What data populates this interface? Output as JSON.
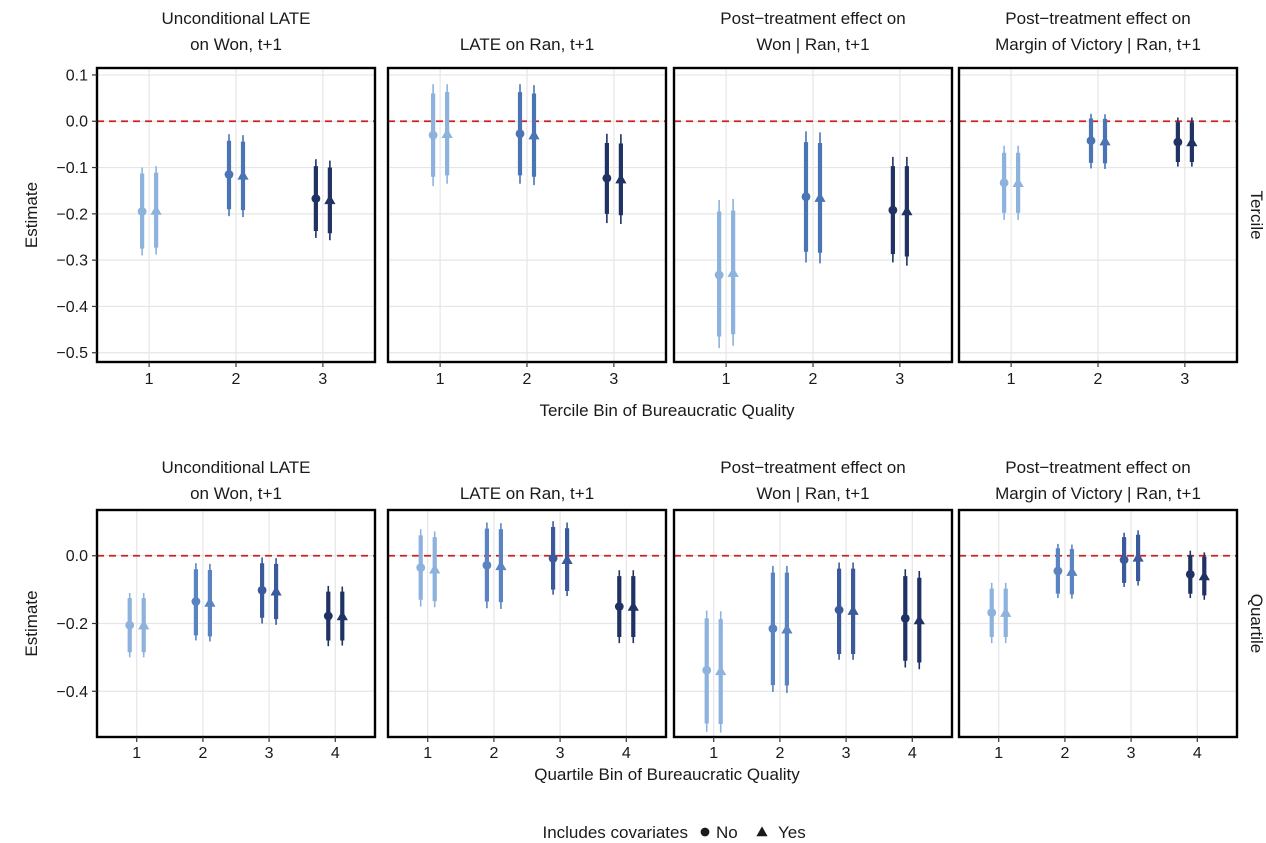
{
  "chart_data": {
    "type": "scatter",
    "description_free": true,
    "reference_line": 0,
    "legend": {
      "title": "Includes covariates",
      "position": "bottom",
      "entries": [
        {
          "label": "No",
          "shape": "circle"
        },
        {
          "label": "Yes",
          "shape": "triangle"
        }
      ]
    },
    "colors": {
      "bin1_tercile": "#8cb2dd",
      "bin2_tercile": "#4b74b4",
      "bin3_tercile": "#203263",
      "bin1_quartile": "#8cb2dd",
      "bin2_quartile": "#5a83c1",
      "bin3_quartile": "#3b5a9c",
      "bin4_quartile": "#203263",
      "refline": "#cc2222"
    },
    "panel_titles": [
      [
        "Unconditional LATE",
        "on Won, t+1"
      ],
      [
        "LATE on Ran, t+1"
      ],
      [
        "Post−treatment effect on",
        "Won | Ran, t+1"
      ],
      [
        "Post−treatment effect on",
        "Margin of Victory | Ran, t+1"
      ]
    ],
    "rows": [
      {
        "strip_label": "Tercile",
        "xlabel": "Tercile Bin of Bureaucratic Quality",
        "ylabel": "Estimate",
        "categories": [
          "1",
          "2",
          "3"
        ],
        "ylim": [
          -0.52,
          0.115
        ],
        "yticks": [
          0.1,
          0.0,
          -0.1,
          -0.2,
          -0.3,
          -0.4,
          -0.5
        ],
        "ytick_labels": [
          "0.1",
          "0.0",
          "−0.1",
          "−0.2",
          "−0.3",
          "−0.4",
          "−0.5"
        ],
        "panels": [
          {
            "bins": [
              {
                "no": {
                  "est": -0.195,
                  "ci90": [
                    -0.275,
                    -0.113
                  ],
                  "ci95": [
                    -0.29,
                    -0.1
                  ]
                },
                "yes": {
                  "est": -0.193,
                  "ci90": [
                    -0.273,
                    -0.111
                  ],
                  "ci95": [
                    -0.288,
                    -0.097
                  ]
                }
              },
              {
                "no": {
                  "est": -0.115,
                  "ci90": [
                    -0.19,
                    -0.042
                  ],
                  "ci95": [
                    -0.205,
                    -0.028
                  ]
                },
                "yes": {
                  "est": -0.117,
                  "ci90": [
                    -0.192,
                    -0.044
                  ],
                  "ci95": [
                    -0.207,
                    -0.03
                  ]
                }
              },
              {
                "no": {
                  "est": -0.167,
                  "ci90": [
                    -0.237,
                    -0.097
                  ],
                  "ci95": [
                    -0.252,
                    -0.082
                  ]
                },
                "yes": {
                  "est": -0.17,
                  "ci90": [
                    -0.242,
                    -0.1
                  ],
                  "ci95": [
                    -0.257,
                    -0.085
                  ]
                }
              }
            ]
          },
          {
            "bins": [
              {
                "no": {
                  "est": -0.03,
                  "ci90": [
                    -0.12,
                    0.06
                  ],
                  "ci95": [
                    -0.14,
                    0.08
                  ]
                },
                "yes": {
                  "est": -0.027,
                  "ci90": [
                    -0.117,
                    0.063
                  ],
                  "ci95": [
                    -0.135,
                    0.08
                  ]
                }
              },
              {
                "no": {
                  "est": -0.027,
                  "ci90": [
                    -0.117,
                    0.063
                  ],
                  "ci95": [
                    -0.135,
                    0.08
                  ]
                },
                "yes": {
                  "est": -0.03,
                  "ci90": [
                    -0.12,
                    0.06
                  ],
                  "ci95": [
                    -0.138,
                    0.078
                  ]
                }
              },
              {
                "no": {
                  "est": -0.123,
                  "ci90": [
                    -0.2,
                    -0.047
                  ],
                  "ci95": [
                    -0.22,
                    -0.027
                  ]
                },
                "yes": {
                  "est": -0.125,
                  "ci90": [
                    -0.203,
                    -0.048
                  ],
                  "ci95": [
                    -0.222,
                    -0.028
                  ]
                }
              }
            ]
          },
          {
            "bins": [
              {
                "no": {
                  "est": -0.332,
                  "ci90": [
                    -0.465,
                    -0.195
                  ],
                  "ci95": [
                    -0.49,
                    -0.17
                  ]
                },
                "yes": {
                  "est": -0.327,
                  "ci90": [
                    -0.46,
                    -0.193
                  ],
                  "ci95": [
                    -0.485,
                    -0.168
                  ]
                }
              },
              {
                "no": {
                  "est": -0.163,
                  "ci90": [
                    -0.282,
                    -0.045
                  ],
                  "ci95": [
                    -0.305,
                    -0.022
                  ]
                },
                "yes": {
                  "est": -0.165,
                  "ci90": [
                    -0.284,
                    -0.047
                  ],
                  "ci95": [
                    -0.307,
                    -0.024
                  ]
                }
              },
              {
                "no": {
                  "est": -0.192,
                  "ci90": [
                    -0.287,
                    -0.097
                  ],
                  "ci95": [
                    -0.305,
                    -0.077
                  ]
                },
                "yes": {
                  "est": -0.194,
                  "ci90": [
                    -0.292,
                    -0.097
                  ],
                  "ci95": [
                    -0.312,
                    -0.077
                  ]
                }
              }
            ]
          },
          {
            "bins": [
              {
                "no": {
                  "est": -0.133,
                  "ci90": [
                    -0.198,
                    -0.068
                  ],
                  "ci95": [
                    -0.213,
                    -0.053
                  ]
                },
                "yes": {
                  "est": -0.133,
                  "ci90": [
                    -0.198,
                    -0.068
                  ],
                  "ci95": [
                    -0.213,
                    -0.053
                  ]
                }
              },
              {
                "no": {
                  "est": -0.042,
                  "ci90": [
                    -0.09,
                    0.006
                  ],
                  "ci95": [
                    -0.102,
                    0.016
                  ]
                },
                "yes": {
                  "est": -0.043,
                  "ci90": [
                    -0.091,
                    0.005
                  ],
                  "ci95": [
                    -0.103,
                    0.015
                  ]
                }
              },
              {
                "no": {
                  "est": -0.045,
                  "ci90": [
                    -0.088,
                    -0.002
                  ],
                  "ci95": [
                    -0.098,
                    0.008
                  ]
                },
                "yes": {
                  "est": -0.045,
                  "ci90": [
                    -0.088,
                    -0.002
                  ],
                  "ci95": [
                    -0.098,
                    0.008
                  ]
                }
              }
            ]
          }
        ]
      },
      {
        "strip_label": "Quartile",
        "xlabel": "Quartile Bin of Bureaucratic Quality",
        "ylabel": "Estimate",
        "categories": [
          "1",
          "2",
          "3",
          "4"
        ],
        "ylim": [
          -0.535,
          0.135
        ],
        "yticks": [
          0.0,
          -0.2,
          -0.4
        ],
        "ytick_labels": [
          "0.0",
          "−0.2",
          "−0.4"
        ],
        "panels": [
          {
            "bins": [
              {
                "no": {
                  "est": -0.205,
                  "ci90": [
                    -0.285,
                    -0.125
                  ],
                  "ci95": [
                    -0.3,
                    -0.11
                  ]
                },
                "yes": {
                  "est": -0.205,
                  "ci90": [
                    -0.285,
                    -0.125
                  ],
                  "ci95": [
                    -0.3,
                    -0.11
                  ]
                }
              },
              {
                "no": {
                  "est": -0.135,
                  "ci90": [
                    -0.235,
                    -0.04
                  ],
                  "ci95": [
                    -0.25,
                    -0.022
                  ]
                },
                "yes": {
                  "est": -0.138,
                  "ci90": [
                    -0.238,
                    -0.042
                  ],
                  "ci95": [
                    -0.253,
                    -0.024
                  ]
                }
              },
              {
                "no": {
                  "est": -0.102,
                  "ci90": [
                    -0.183,
                    -0.022
                  ],
                  "ci95": [
                    -0.2,
                    -0.005
                  ]
                },
                "yes": {
                  "est": -0.105,
                  "ci90": [
                    -0.187,
                    -0.024
                  ],
                  "ci95": [
                    -0.204,
                    -0.007
                  ]
                }
              },
              {
                "no": {
                  "est": -0.178,
                  "ci90": [
                    -0.25,
                    -0.106
                  ],
                  "ci95": [
                    -0.267,
                    -0.089
                  ]
                },
                "yes": {
                  "est": -0.178,
                  "ci90": [
                    -0.25,
                    -0.106
                  ],
                  "ci95": [
                    -0.265,
                    -0.091
                  ]
                }
              }
            ]
          },
          {
            "bins": [
              {
                "no": {
                  "est": -0.035,
                  "ci90": [
                    -0.13,
                    0.06
                  ],
                  "ci95": [
                    -0.15,
                    0.078
                  ]
                },
                "yes": {
                  "est": -0.04,
                  "ci90": [
                    -0.134,
                    0.055
                  ],
                  "ci95": [
                    -0.152,
                    0.072
                  ]
                }
              },
              {
                "no": {
                  "est": -0.028,
                  "ci90": [
                    -0.135,
                    0.08
                  ],
                  "ci95": [
                    -0.155,
                    0.098
                  ]
                },
                "yes": {
                  "est": -0.03,
                  "ci90": [
                    -0.137,
                    0.078
                  ],
                  "ci95": [
                    -0.157,
                    0.096
                  ]
                }
              },
              {
                "no": {
                  "est": -0.008,
                  "ci90": [
                    -0.1,
                    0.085
                  ],
                  "ci95": [
                    -0.115,
                    0.102
                  ]
                },
                "yes": {
                  "est": -0.012,
                  "ci90": [
                    -0.104,
                    0.081
                  ],
                  "ci95": [
                    -0.119,
                    0.098
                  ]
                }
              },
              {
                "no": {
                  "est": -0.15,
                  "ci90": [
                    -0.24,
                    -0.06
                  ],
                  "ci95": [
                    -0.258,
                    -0.043
                  ]
                },
                "yes": {
                  "est": -0.15,
                  "ci90": [
                    -0.24,
                    -0.06
                  ],
                  "ci95": [
                    -0.258,
                    -0.043
                  ]
                }
              }
            ]
          },
          {
            "bins": [
              {
                "no": {
                  "est": -0.338,
                  "ci90": [
                    -0.495,
                    -0.185
                  ],
                  "ci95": [
                    -0.52,
                    -0.162
                  ]
                },
                "yes": {
                  "est": -0.34,
                  "ci90": [
                    -0.497,
                    -0.187
                  ],
                  "ci95": [
                    -0.522,
                    -0.164
                  ]
                }
              },
              {
                "no": {
                  "est": -0.215,
                  "ci90": [
                    -0.382,
                    -0.05
                  ],
                  "ci95": [
                    -0.402,
                    -0.03
                  ]
                },
                "yes": {
                  "est": -0.217,
                  "ci90": [
                    -0.383,
                    -0.05
                  ],
                  "ci95": [
                    -0.405,
                    -0.03
                  ]
                }
              },
              {
                "no": {
                  "est": -0.16,
                  "ci90": [
                    -0.29,
                    -0.038
                  ],
                  "ci95": [
                    -0.307,
                    -0.02
                  ]
                },
                "yes": {
                  "est": -0.162,
                  "ci90": [
                    -0.29,
                    -0.038
                  ],
                  "ci95": [
                    -0.307,
                    -0.02
                  ]
                }
              },
              {
                "no": {
                  "est": -0.185,
                  "ci90": [
                    -0.31,
                    -0.06
                  ],
                  "ci95": [
                    -0.33,
                    -0.04
                  ]
                },
                "yes": {
                  "est": -0.19,
                  "ci90": [
                    -0.315,
                    -0.065
                  ],
                  "ci95": [
                    -0.335,
                    -0.045
                  ]
                }
              }
            ]
          },
          {
            "bins": [
              {
                "no": {
                  "est": -0.168,
                  "ci90": [
                    -0.24,
                    -0.097
                  ],
                  "ci95": [
                    -0.258,
                    -0.08
                  ]
                },
                "yes": {
                  "est": -0.168,
                  "ci90": [
                    -0.24,
                    -0.097
                  ],
                  "ci95": [
                    -0.258,
                    -0.08
                  ]
                }
              },
              {
                "no": {
                  "est": -0.045,
                  "ci90": [
                    -0.112,
                    0.022
                  ],
                  "ci95": [
                    -0.125,
                    0.035
                  ]
                },
                "yes": {
                  "est": -0.047,
                  "ci90": [
                    -0.114,
                    0.02
                  ],
                  "ci95": [
                    -0.127,
                    0.033
                  ]
                }
              },
              {
                "no": {
                  "est": -0.012,
                  "ci90": [
                    -0.08,
                    0.055
                  ],
                  "ci95": [
                    -0.092,
                    0.068
                  ]
                },
                "yes": {
                  "est": -0.005,
                  "ci90": [
                    -0.075,
                    0.062
                  ],
                  "ci95": [
                    -0.088,
                    0.075
                  ]
                }
              },
              {
                "no": {
                  "est": -0.055,
                  "ci90": [
                    -0.112,
                    0.002
                  ],
                  "ci95": [
                    -0.125,
                    0.015
                  ]
                },
                "yes": {
                  "est": -0.06,
                  "ci90": [
                    -0.117,
                    -0.003
                  ],
                  "ci95": [
                    -0.13,
                    0.01
                  ]
                }
              }
            ]
          }
        ]
      }
    ]
  }
}
